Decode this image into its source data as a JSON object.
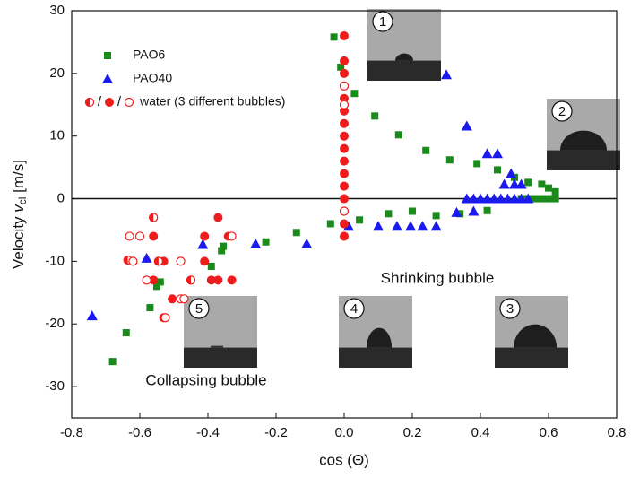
{
  "chart_data": {
    "type": "scatter",
    "x_label": "cos (Θ)",
    "y_label": {
      "text": "Velocity",
      "var": "v",
      "sub": "cl",
      "unit": "[m/s]"
    },
    "xlim": [
      -0.8,
      0.8
    ],
    "xticks": [
      -0.8,
      -0.6,
      -0.4,
      -0.2,
      {
        "value": 0,
        "label": "0.0"
      },
      0.2,
      0.4,
      0.6,
      0.8
    ],
    "ylim": [
      -35,
      30
    ],
    "yticks": [
      -30,
      -20,
      -10,
      0,
      10,
      20,
      30
    ],
    "reference_line_y": 0,
    "legend_separator": "/",
    "series": [
      {
        "name": "PAO6",
        "color": "#1a8a1a",
        "marker": "square",
        "x": [
          -0.03,
          -0.01,
          0.03,
          0.09,
          0.16,
          0.24,
          0.31,
          0.39,
          0.45,
          0.5,
          0.54,
          0.58,
          0.6,
          0.62,
          0.52,
          0.54,
          0.56,
          0.58,
          0.6,
          0.62,
          -0.04,
          0.045,
          0.13,
          0.2,
          0.27,
          0.34,
          0.42,
          -0.14,
          -0.23,
          -0.355,
          -0.36,
          -0.39,
          -0.54,
          -0.55,
          -0.57,
          -0.64,
          -0.68
        ],
        "values": [
          25.8,
          21,
          16.8,
          13.2,
          10.2,
          7.7,
          6.2,
          5.6,
          4.6,
          3.4,
          2.6,
          2.3,
          1.7,
          1.1,
          0,
          0,
          0,
          0,
          0,
          0,
          -4,
          -3.4,
          -2.4,
          -2,
          -2.7,
          -2.4,
          -1.9,
          -5.4,
          -6.9,
          -7.6,
          -8.3,
          -10.8,
          -13.3,
          -14,
          -17.4,
          -21.4,
          -26
        ]
      },
      {
        "name": "PAO40",
        "color": "#1a1aee",
        "marker": "triangle",
        "x": [
          0.3,
          0.36,
          0.42,
          0.45,
          0.47,
          0.5,
          0.52,
          0.49,
          0.36,
          0.38,
          0.4,
          0.42,
          0.44,
          0.46,
          0.48,
          0.5,
          0.52,
          0.54,
          0.38,
          0.33,
          0.27,
          0.23,
          0.195,
          0.155,
          0.1,
          0.013,
          -0.11,
          -0.26,
          -0.415,
          -0.58,
          -0.74
        ],
        "values": [
          19.8,
          11.6,
          7.2,
          7.2,
          2.3,
          2.3,
          2.3,
          4,
          0,
          0,
          0,
          0,
          0,
          0,
          0,
          0,
          0,
          0,
          -2,
          -2.2,
          -4.4,
          -4.4,
          -4.4,
          -4.4,
          -4.4,
          -4.4,
          -7.2,
          -7.2,
          -7.3,
          -9.5,
          -18.7
        ]
      },
      {
        "name": "water (3 different bubbles)",
        "color": "#ee1c1c",
        "marker": [
          "half",
          "filled",
          "open"
        ],
        "x": [
          0,
          0,
          0,
          0,
          0,
          0,
          0,
          0,
          0,
          0,
          0,
          0,
          0,
          0,
          0,
          0,
          0,
          0,
          0,
          -0.37,
          -0.41,
          -0.34,
          -0.56,
          -0.56,
          -0.6,
          -0.63,
          -0.33,
          -0.635,
          -0.62,
          -0.53,
          -0.545,
          -0.41,
          -0.48,
          -0.56,
          -0.58,
          -0.39,
          -0.37,
          -0.33,
          -0.45,
          -0.505,
          -0.48,
          -0.47,
          -0.53,
          -0.525
        ],
        "values": [
          26,
          22,
          20,
          18,
          16,
          14,
          12,
          10,
          8,
          6,
          4,
          2,
          0,
          -2,
          -4,
          -6,
          18,
          15,
          -2,
          -3,
          -6,
          -6,
          -3,
          -6,
          -6,
          -6,
          -6,
          -9.8,
          -10,
          -10,
          -10,
          -10,
          -10,
          -13,
          -13,
          -13,
          -13,
          -13,
          -13,
          -16,
          -16,
          -16,
          -19,
          -19
        ],
        "markers": [
          1,
          1,
          1,
          1,
          1,
          1,
          1,
          1,
          1,
          1,
          1,
          1,
          1,
          1,
          1,
          1,
          2,
          2,
          2,
          1,
          1,
          1,
          0,
          1,
          2,
          2,
          2,
          0,
          2,
          1,
          0,
          1,
          2,
          1,
          2,
          1,
          1,
          1,
          0,
          1,
          2,
          2,
          1,
          2
        ]
      }
    ],
    "annotations": [
      "Shrinking bubble",
      "Collapsing bubble"
    ],
    "insets": [
      "1",
      "2",
      "3",
      "4",
      "5"
    ]
  }
}
